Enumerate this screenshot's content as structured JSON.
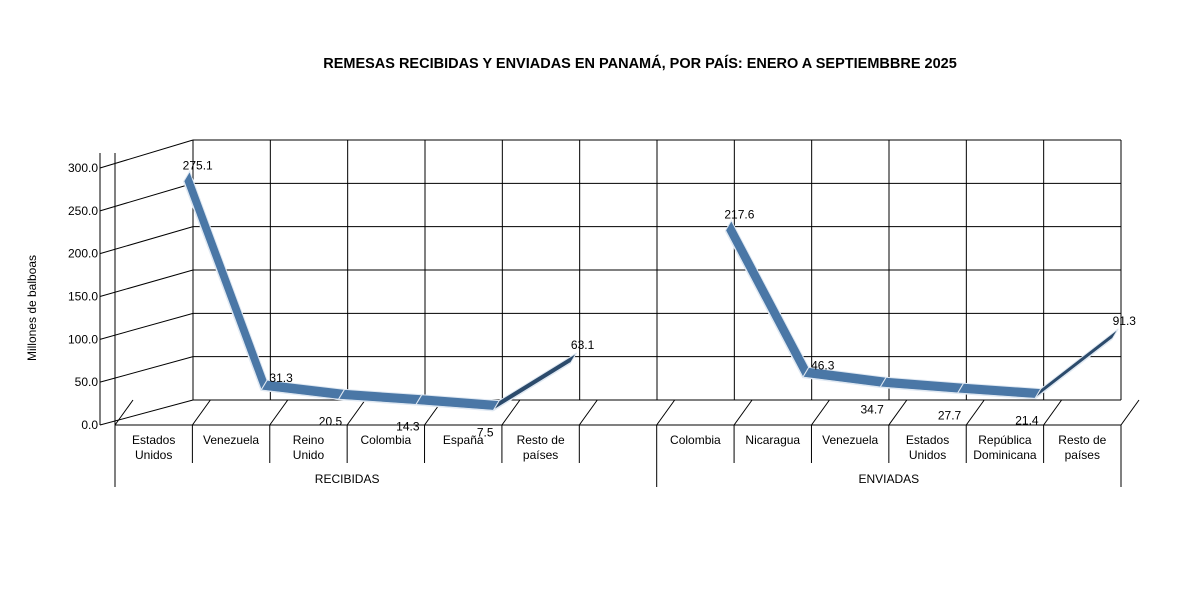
{
  "chart_data": {
    "type": "line",
    "title": "REMESAS RECIBIDAS Y ENVIADAS EN PANAMÁ, POR PAÍS: ENERO A SEPTIEMBBRE 2025",
    "ylabel": "Millones de balboas",
    "ylim": [
      0,
      300
    ],
    "yticks": [
      "0.0",
      "50.0",
      "100.0",
      "150.0",
      "200.0",
      "250.0",
      "300.0"
    ],
    "grid": true,
    "groups": [
      {
        "name": "RECIBIDAS",
        "categories": [
          "Estados\nUnidos",
          "Venezuela",
          "Reino\nUnido",
          "Colombia",
          "España",
          "Resto de\npaíses"
        ],
        "values": [
          275.1,
          31.3,
          20.5,
          14.3,
          7.5,
          63.1
        ],
        "labels": [
          "275.1",
          "31.3",
          "20.5",
          "14.3",
          "7.5",
          "63.1"
        ]
      },
      {
        "name": "ENVIADAS",
        "categories": [
          "Colombia",
          "Nicaragua",
          "Venezuela",
          "Estados\nUnidos",
          "República\nDominicana",
          "Resto de\npaíses"
        ],
        "values": [
          217.6,
          46.3,
          34.7,
          27.7,
          21.4,
          91.3
        ],
        "labels": [
          "217.6",
          "46.3",
          "34.7",
          "27.7",
          "21.4",
          "91.3"
        ]
      }
    ],
    "colors": {
      "ribbon": "#4a77a6",
      "ribbon_dark": "#2c4b6c",
      "ribbon_edge": "#dfe8f2",
      "grid": "#000000"
    }
  }
}
